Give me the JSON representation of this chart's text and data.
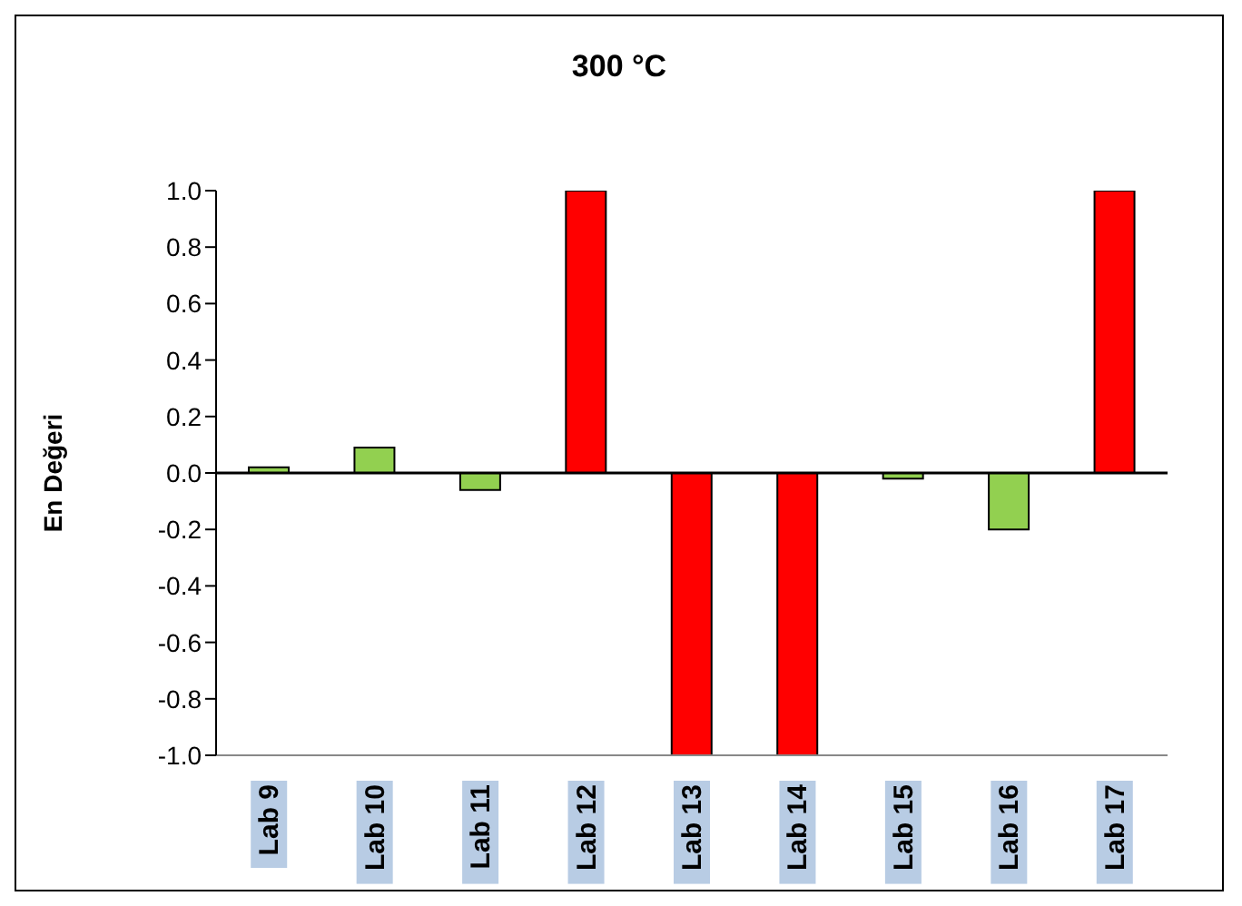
{
  "chart_data": {
    "type": "bar",
    "title": "300 °C",
    "ylabel": "En Değeri",
    "categories": [
      "Lab 9",
      "Lab 10",
      "Lab 11",
      "Lab 12",
      "Lab 13",
      "Lab 14",
      "Lab 15",
      "Lab 16",
      "Lab 17"
    ],
    "values": [
      0.02,
      0.09,
      -0.06,
      1.0,
      -1.0,
      -1.0,
      -0.02,
      -0.2,
      1.0
    ],
    "colors": [
      "#92d050",
      "#92d050",
      "#92d050",
      "#ff0000",
      "#ff0000",
      "#ff0000",
      "#92d050",
      "#92d050",
      "#ff0000"
    ],
    "ylim": [
      -1.0,
      1.0
    ],
    "yticks": [
      {
        "value": -1,
        "label": "-1.0"
      },
      {
        "value": -0.8,
        "label": "-0.8"
      },
      {
        "value": -0.6,
        "label": "-0.6"
      },
      {
        "value": -0.4,
        "label": "-0.4"
      },
      {
        "value": -0.2,
        "label": "-0.2"
      },
      {
        "value": 0,
        "label": "0.0"
      },
      {
        "value": 0.2,
        "label": "0.2"
      },
      {
        "value": 0.4,
        "label": "0.4"
      },
      {
        "value": 0.6,
        "label": "0.6"
      },
      {
        "value": 0.8,
        "label": "0.8"
      },
      {
        "value": 1,
        "label": "1.0"
      }
    ],
    "legend": false
  }
}
